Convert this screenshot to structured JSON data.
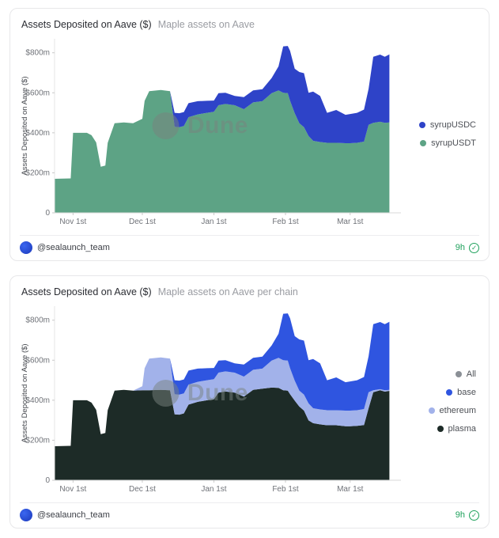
{
  "watermark": "Dune",
  "icons": {
    "verified_check": "✓"
  },
  "cards": [
    {
      "title": "Assets Deposited on Aave ($)",
      "subtitle": "Maple assets on Aave",
      "footer": {
        "author": "@sealaunch_team",
        "age": "9h"
      },
      "chart_data": {
        "type": "area",
        "stacked": true,
        "title": "Assets Deposited on Aave ($)",
        "xlabel": "",
        "ylabel": "Assets Deposited on Aave ($)",
        "x_unit": "days since Oct 24",
        "xlim": [
          0,
          150
        ],
        "ylim": [
          0,
          870
        ],
        "grid": false,
        "legend_position": "right",
        "x": [
          0,
          7,
          8,
          14,
          16,
          18,
          20,
          22,
          23,
          26,
          30,
          34,
          38,
          39,
          41,
          46,
          50,
          52,
          54,
          56,
          58,
          62,
          66,
          69,
          71,
          74,
          78,
          82,
          86,
          90,
          94,
          97,
          99,
          101,
          102,
          104,
          106,
          108,
          110,
          112,
          115,
          118,
          122,
          126,
          128,
          131,
          134,
          136,
          138,
          141,
          143,
          145
        ],
        "series": [
          {
            "name": "syrupUSDT",
            "color": "#5da385",
            "values": [
              170,
              172,
              400,
              400,
              388,
              352,
              230,
              236,
              350,
              448,
              452,
              448,
              470,
              560,
              608,
              614,
              608,
              430,
              428,
              434,
              478,
              492,
              500,
              505,
              538,
              544,
              538,
              518,
              552,
              558,
              598,
              612,
              600,
              598,
              560,
              498,
              448,
              428,
              384,
              360,
              354,
              350,
              350,
              348,
              348,
              350,
              356,
              440,
              450,
              455,
              450,
              452
            ]
          },
          {
            "name": "syrupUSDC",
            "color": "#2e43c8",
            "values": [
              0,
              0,
              0,
              0,
              0,
              0,
              0,
              0,
              0,
              0,
              0,
              0,
              0,
              0,
              0,
              0,
              0,
              70,
              70,
              70,
              70,
              66,
              60,
              56,
              60,
              56,
              46,
              60,
              60,
              60,
              76,
              120,
              232,
              236,
              250,
              222,
              256,
              270,
              216,
              246,
              230,
              150,
              164,
              142,
              146,
              150,
              160,
              180,
              330,
              336,
              330,
              340
            ]
          }
        ],
        "legend": [
          {
            "label": "syrupUSDC",
            "color": "#2e43c8"
          },
          {
            "label": "syrupUSDT",
            "color": "#5da385"
          }
        ],
        "yticks": [
          {
            "v": 0,
            "label": "0"
          },
          {
            "v": 200,
            "label": "$200m"
          },
          {
            "v": 400,
            "label": "$400m"
          },
          {
            "v": 600,
            "label": "$600m"
          },
          {
            "v": 800,
            "label": "$800m"
          }
        ],
        "xticks": [
          {
            "v": 8,
            "label": "Nov 1st"
          },
          {
            "v": 38,
            "label": "Dec 1st"
          },
          {
            "v": 69,
            "label": "Jan 1st"
          },
          {
            "v": 100,
            "label": "Feb 1st"
          },
          {
            "v": 128,
            "label": "Mar 1st"
          }
        ]
      }
    },
    {
      "title": "Assets Deposited on Aave ($)",
      "subtitle": "Maple assets on Aave per chain",
      "footer": {
        "author": "@sealaunch_team",
        "age": "9h"
      },
      "chart_data": {
        "type": "area",
        "stacked": true,
        "title": "Assets Deposited on Aave ($)",
        "xlabel": "",
        "ylabel": "Assets Deposited on Aave ($)",
        "x_unit": "days since Oct 24",
        "xlim": [
          0,
          150
        ],
        "ylim": [
          0,
          870
        ],
        "grid": false,
        "legend_position": "right",
        "x": [
          0,
          7,
          8,
          14,
          16,
          18,
          20,
          22,
          23,
          26,
          30,
          34,
          38,
          39,
          41,
          46,
          50,
          52,
          54,
          56,
          58,
          62,
          66,
          69,
          71,
          74,
          78,
          82,
          86,
          90,
          94,
          97,
          99,
          101,
          102,
          104,
          106,
          108,
          110,
          112,
          115,
          118,
          122,
          126,
          128,
          131,
          134,
          136,
          138,
          141,
          143,
          145
        ],
        "series": [
          {
            "name": "plasma",
            "color": "#1d2b27",
            "values": [
              170,
              172,
              400,
              400,
              388,
              352,
              230,
              236,
              350,
              448,
              452,
              448,
              450,
              450,
              450,
              452,
              450,
              330,
              328,
              334,
              378,
              392,
              400,
              405,
              438,
              444,
              438,
              418,
              452,
              458,
              463,
              462,
              450,
              448,
              430,
              398,
              368,
              348,
              299,
              285,
              279,
              275,
              275,
              270,
              270,
              272,
              276,
              360,
              440,
              450,
              443,
              447
            ]
          },
          {
            "name": "ethereum",
            "color": "#a2b2ea",
            "values": [
              0,
              0,
              0,
              0,
              0,
              0,
              0,
              0,
              0,
              0,
              0,
              0,
              20,
              110,
              158,
              162,
              158,
              100,
              100,
              100,
              100,
              100,
              100,
              100,
              100,
              100,
              100,
              100,
              100,
              100,
              135,
              150,
              150,
              150,
              130,
              100,
              80,
              80,
              85,
              75,
              75,
              75,
              75,
              78,
              78,
              78,
              80,
              80,
              10,
              5,
              7,
              5
            ]
          },
          {
            "name": "base",
            "color": "#2f55e0",
            "values": [
              0,
              0,
              0,
              0,
              0,
              0,
              0,
              0,
              0,
              0,
              0,
              0,
              0,
              0,
              0,
              0,
              0,
              70,
              70,
              70,
              70,
              66,
              60,
              56,
              60,
              56,
              46,
              60,
              60,
              60,
              76,
              120,
              232,
              236,
              250,
              222,
              256,
              270,
              216,
              246,
              230,
              150,
              164,
              142,
              146,
              150,
              160,
              180,
              330,
              336,
              330,
              340
            ]
          }
        ],
        "legend": [
          {
            "label": "All",
            "color": "#8b9096"
          },
          {
            "label": "base",
            "color": "#2f55e0"
          },
          {
            "label": "ethereum",
            "color": "#a2b2ea"
          },
          {
            "label": "plasma",
            "color": "#1d2b27"
          }
        ],
        "yticks": [
          {
            "v": 0,
            "label": "0"
          },
          {
            "v": 200,
            "label": "$200m"
          },
          {
            "v": 400,
            "label": "$400m"
          },
          {
            "v": 600,
            "label": "$600m"
          },
          {
            "v": 800,
            "label": "$800m"
          }
        ],
        "xticks": [
          {
            "v": 8,
            "label": "Nov 1st"
          },
          {
            "v": 38,
            "label": "Dec 1st"
          },
          {
            "v": 69,
            "label": "Jan 1st"
          },
          {
            "v": 100,
            "label": "Feb 1st"
          },
          {
            "v": 128,
            "label": "Mar 1st"
          }
        ]
      }
    }
  ]
}
